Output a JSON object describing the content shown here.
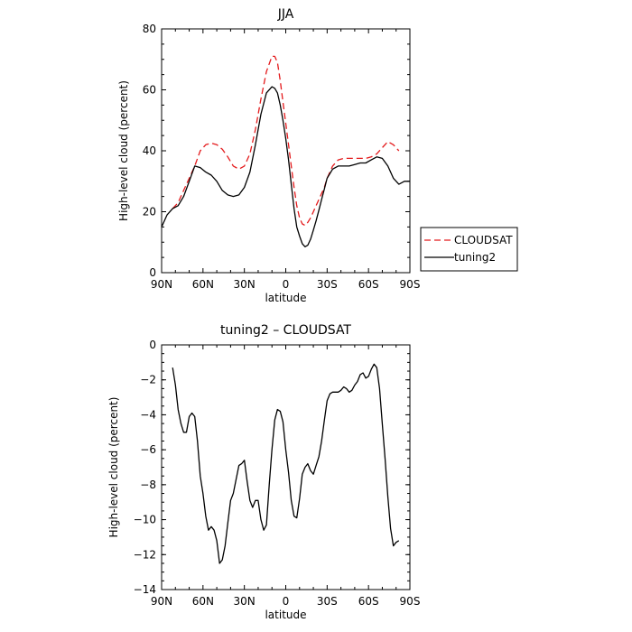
{
  "chart_data": [
    {
      "type": "line",
      "title": "JJA",
      "xlabel": "latitude",
      "ylabel": "High-level cloud (percent)",
      "xlim": [
        90,
        -90
      ],
      "ylim": [
        0,
        80
      ],
      "xticks": [
        90,
        60,
        30,
        0,
        -30,
        -60,
        -90
      ],
      "xtick_labels": [
        "90N",
        "60N",
        "30N",
        "0",
        "30S",
        "60S",
        "90S"
      ],
      "yticks": [
        0,
        20,
        40,
        60,
        80
      ],
      "ytick_labels": [
        "0",
        "20",
        "40",
        "60",
        "80"
      ],
      "grid": false,
      "legend": "outside-right",
      "series": [
        {
          "name": "CLOUDSAT",
          "color": "#e41a1c",
          "dash": "dashed",
          "x": [
            82,
            78,
            74,
            70,
            66,
            62,
            58,
            54,
            50,
            46,
            42,
            38,
            34,
            30,
            26,
            22,
            18,
            14,
            10,
            8,
            6,
            4,
            2,
            0,
            -2,
            -4,
            -6,
            -8,
            -10,
            -12,
            -14,
            -16,
            -18,
            -20,
            -22,
            -24,
            -26,
            -28,
            -30,
            -34,
            -38,
            -42,
            -46,
            -50,
            -54,
            -58,
            -62,
            -66,
            -70,
            -74,
            -78,
            -82
          ],
          "values": [
            21,
            23,
            27,
            31,
            35,
            40,
            42,
            42.5,
            42,
            40.5,
            38,
            35,
            34,
            35,
            39,
            47,
            57,
            66,
            71,
            71,
            69,
            63,
            56,
            49,
            42,
            35,
            28,
            22,
            18,
            16,
            15.5,
            16.5,
            18,
            20,
            22,
            24,
            26,
            28,
            31,
            35,
            37,
            37.5,
            37.5,
            37.5,
            37.5,
            37.5,
            38,
            39,
            41,
            43,
            42,
            40
          ]
        },
        {
          "name": "tuning2",
          "color": "#000000",
          "dash": "solid",
          "x": [
            90,
            86,
            82,
            78,
            74,
            70,
            66,
            62,
            58,
            54,
            50,
            46,
            42,
            38,
            34,
            30,
            26,
            22,
            18,
            14,
            10,
            8,
            6,
            4,
            2,
            0,
            -2,
            -4,
            -6,
            -8,
            -10,
            -12,
            -14,
            -16,
            -18,
            -20,
            -22,
            -24,
            -26,
            -28,
            -30,
            -34,
            -38,
            -42,
            -46,
            -50,
            -54,
            -58,
            -62,
            -66,
            -70,
            -74,
            -78,
            -82,
            -86,
            -90
          ],
          "values": [
            15,
            19,
            21,
            22,
            25,
            30,
            35,
            34.5,
            33,
            32,
            30,
            27,
            25.5,
            25,
            25.5,
            28,
            33,
            42,
            52,
            59,
            61,
            60.5,
            59,
            55,
            50,
            44,
            37,
            29,
            21,
            15,
            12,
            9.5,
            8.5,
            9,
            11,
            14,
            17,
            20.5,
            24,
            27.5,
            31,
            34,
            35,
            35,
            35,
            35.5,
            36,
            36,
            37,
            38,
            37.5,
            35,
            31,
            29,
            30,
            30
          ]
        }
      ]
    },
    {
      "type": "line",
      "title": "tuning2 – CLOUDSAT",
      "xlabel": "latitude",
      "ylabel": "High-level cloud (percent)",
      "xlim": [
        90,
        -90
      ],
      "ylim": [
        -14,
        0
      ],
      "xticks": [
        90,
        60,
        30,
        0,
        -30,
        -60,
        -90
      ],
      "xtick_labels": [
        "90N",
        "60N",
        "30N",
        "0",
        "30S",
        "60S",
        "90S"
      ],
      "yticks": [
        -14,
        -12,
        -10,
        -8,
        -6,
        -4,
        -2,
        0
      ],
      "ytick_labels": [
        "−14",
        "−12",
        "−10",
        "−8",
        "−6",
        "−4",
        "−2",
        "0"
      ],
      "grid": false,
      "series": [
        {
          "color": "#000000",
          "dash": "solid",
          "x": [
            82,
            80,
            78,
            76,
            74,
            72,
            70,
            68,
            66,
            64,
            62,
            60,
            58,
            56,
            54,
            52,
            50,
            48,
            46,
            44,
            42,
            40,
            38,
            36,
            34,
            32,
            30,
            28,
            26,
            24,
            22,
            20,
            18,
            16,
            14,
            12,
            10,
            8,
            6,
            4,
            2,
            0,
            -2,
            -4,
            -6,
            -8,
            -10,
            -12,
            -14,
            -16,
            -18,
            -20,
            -22,
            -24,
            -26,
            -28,
            -30,
            -32,
            -34,
            -36,
            -38,
            -40,
            -42,
            -44,
            -46,
            -48,
            -50,
            -52,
            -54,
            -56,
            -58,
            -60,
            -62,
            -64,
            -66,
            -68,
            -70,
            -72,
            -74,
            -76,
            -78,
            -80,
            -82
          ],
          "values": [
            -1.3,
            -2.3,
            -3.7,
            -4.5,
            -5.0,
            -5.0,
            -4.1,
            -3.9,
            -4.1,
            -5.5,
            -7.5,
            -8.5,
            -9.8,
            -10.6,
            -10.4,
            -10.6,
            -11.2,
            -12.5,
            -12.3,
            -11.5,
            -10.2,
            -8.9,
            -8.5,
            -7.7,
            -6.9,
            -6.8,
            -6.6,
            -7.8,
            -8.9,
            -9.3,
            -8.9,
            -8.9,
            -10.0,
            -10.6,
            -10.3,
            -8.0,
            -6.0,
            -4.3,
            -3.7,
            -3.8,
            -4.4,
            -6.0,
            -7.3,
            -8.9,
            -9.8,
            -9.9,
            -8.8,
            -7.4,
            -7.0,
            -6.8,
            -7.2,
            -7.4,
            -6.9,
            -6.4,
            -5.5,
            -4.3,
            -3.2,
            -2.8,
            -2.7,
            -2.7,
            -2.7,
            -2.6,
            -2.4,
            -2.5,
            -2.7,
            -2.6,
            -2.3,
            -2.1,
            -1.7,
            -1.6,
            -1.9,
            -1.8,
            -1.4,
            -1.1,
            -1.3,
            -2.5,
            -4.5,
            -6.5,
            -8.7,
            -10.5,
            -11.5,
            -11.3,
            -11.2
          ]
        }
      ]
    }
  ]
}
